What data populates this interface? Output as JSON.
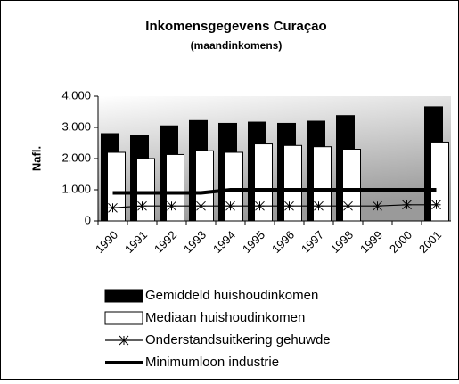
{
  "chart_data": {
    "type": "bar_line",
    "title": "Inkomensgegevens Curaçao",
    "subtitle": "(maandinkomens)",
    "y_label": "Nafl.",
    "categories": [
      "1990",
      "1991",
      "1992",
      "1993",
      "1994",
      "1995",
      "1996",
      "1997",
      "1998",
      "1999",
      "2000",
      "2001"
    ],
    "series": [
      {
        "name": "Gemiddeld huishoudinkomen",
        "kind": "bar",
        "color": "#000000",
        "values": [
          2800,
          2750,
          3050,
          3220,
          3130,
          3170,
          3130,
          3200,
          3380,
          null,
          null,
          3660
        ]
      },
      {
        "name": "Mediaan huishoudinkomen",
        "kind": "bar",
        "color": "#ffffff",
        "values": [
          2200,
          2000,
          2130,
          2250,
          2200,
          2470,
          2420,
          2380,
          2300,
          null,
          null,
          2530
        ]
      },
      {
        "name": "Onderstandsuitkering gehuwde",
        "kind": "marker-line",
        "color": "#000000",
        "values": [
          420,
          480,
          480,
          480,
          480,
          480,
          480,
          480,
          480,
          480,
          520,
          520
        ]
      },
      {
        "name": "Minimumloon industrie",
        "kind": "line",
        "color": "#000000",
        "values": [
          900,
          900,
          900,
          900,
          1000,
          1000,
          1000,
          1000,
          1000,
          1000,
          1000,
          1000
        ]
      }
    ],
    "ylim": [
      0,
      4000
    ],
    "yticks": [
      0,
      {
        "value": 1000,
        "label": "1.000"
      },
      {
        "value": 2000,
        "label": "2.000"
      },
      {
        "value": 3000,
        "label": "3.000"
      },
      {
        "value": 4000,
        "label": "4.000"
      }
    ],
    "legend": "bottom"
  }
}
